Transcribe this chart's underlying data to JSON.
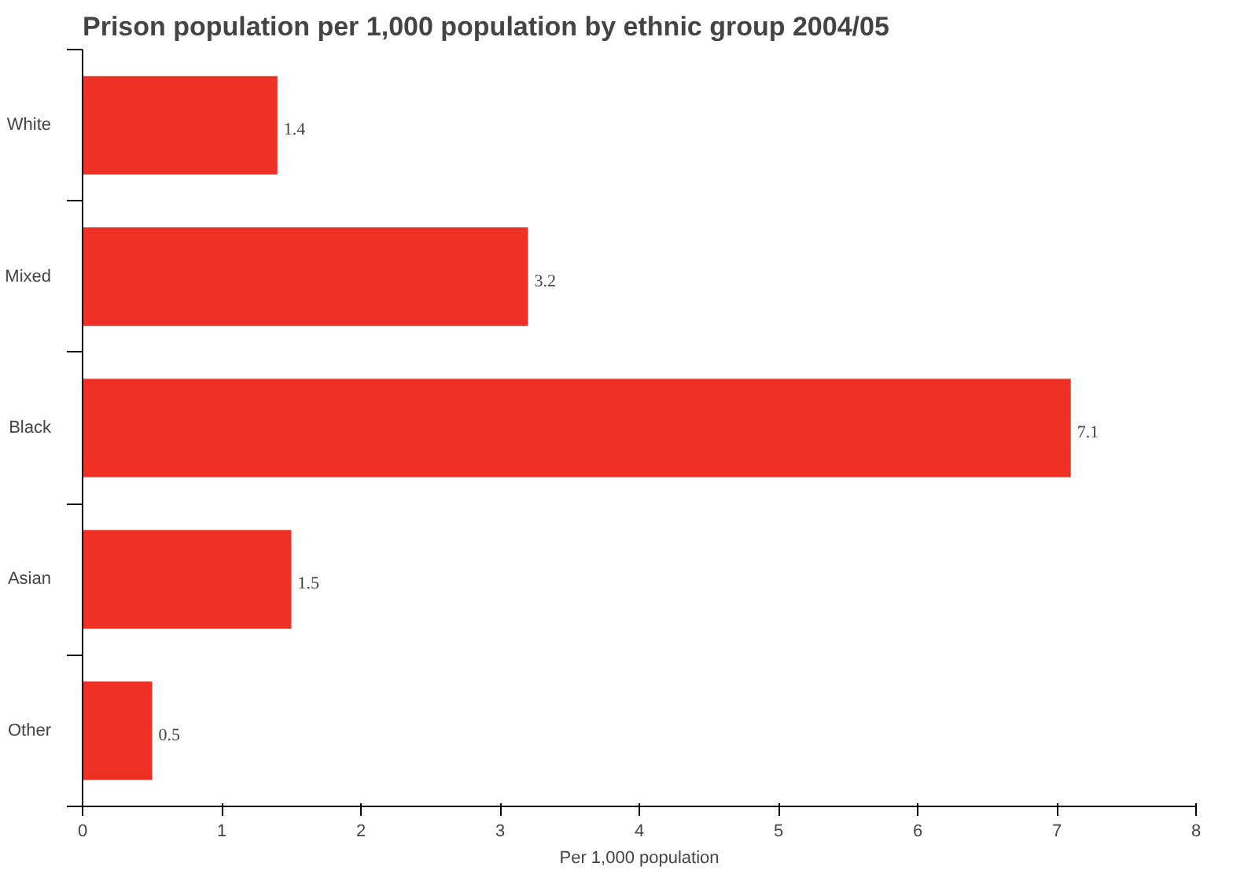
{
  "chart_data": {
    "type": "bar",
    "orientation": "horizontal",
    "title": "Prison population per 1,000 population by ethnic group 2004/05",
    "xlabel": "Per 1,000 population",
    "categories": [
      "White",
      "Mixed",
      "Black",
      "Asian",
      "Other"
    ],
    "values": [
      1.4,
      3.2,
      7.1,
      1.5,
      0.5
    ],
    "color": "#ee3124",
    "xlim": [
      0,
      8
    ],
    "xticks": [
      0,
      1,
      2,
      3,
      4,
      5,
      6,
      7,
      8
    ],
    "grid": false,
    "data_labels": true
  }
}
